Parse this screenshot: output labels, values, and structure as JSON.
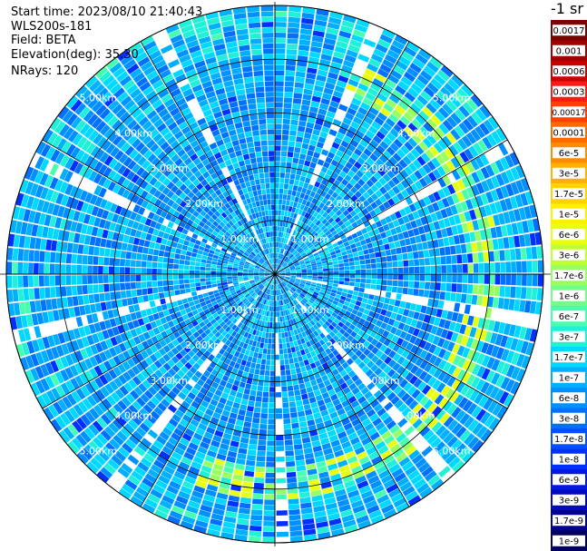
{
  "info": {
    "start_time": "Start time: 2023/08/10 21:40:43",
    "instrument": "WLS200s-181",
    "field": "Field: BETA",
    "elevation": "Elevation(deg): 35.30",
    "nrays": "NRays: 120"
  },
  "colorbar": {
    "unit_label": "-1 sr",
    "tick_labels": [
      "0.0017",
      "0.001",
      "0.0006",
      "0.0003",
      "0.00017",
      "0.0001",
      "6e-5",
      "3e-5",
      "1.7e-5",
      "1e-5",
      "6e-6",
      "3e-6",
      "1.7e-6",
      "1e-6",
      "6e-7",
      "3e-7",
      "1.7e-7",
      "1e-7",
      "6e-8",
      "3e-8",
      "1.7e-8",
      "1e-8",
      "6e-9",
      "3e-9",
      "1.7e-9",
      "1e-9"
    ],
    "colors": [
      "#7a0000",
      "#a00000",
      "#c80000",
      "#ff1a1a",
      "#ff4000",
      "#ff6a00",
      "#ff8c00",
      "#ffb000",
      "#ffd200",
      "#fff000",
      "#e8ff10",
      "#c0ff30",
      "#98ff60",
      "#70ff88",
      "#48ffb0",
      "#20f0d8",
      "#00d8ff",
      "#00b0ff",
      "#0090ff",
      "#0070ff",
      "#0050ff",
      "#0030ff",
      "#0018e0",
      "#0008c0",
      "#000090",
      "#000060"
    ]
  },
  "chart_data": {
    "type": "heatmap",
    "projection": "polar PPI",
    "field": "BETA",
    "nrays": 120,
    "range_rings_km": [
      1,
      2,
      3,
      4,
      5
    ],
    "range_labels": [
      "1.00km",
      "2.00km",
      "3.00km",
      "4.00km",
      "5.00km"
    ],
    "max_range_km": 5,
    "dominant_value_range": [
      "1e-8",
      "1e-7"
    ],
    "enhanced_band_range_km": [
      3.6,
      4.2
    ],
    "enhanced_band_azimuths": [
      "north-east",
      "east",
      "south-east",
      "south"
    ],
    "grid": true
  }
}
